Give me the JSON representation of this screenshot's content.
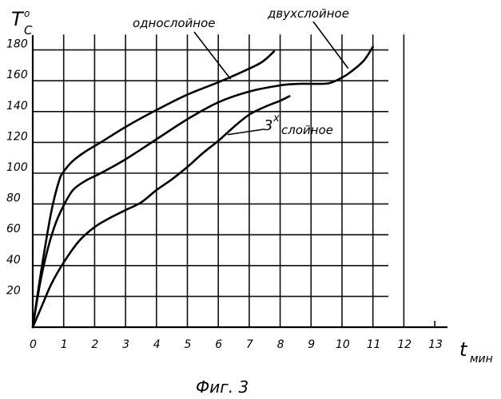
{
  "chart_data": {
    "type": "line",
    "title": "",
    "caption": "Фиг. 3",
    "xlabel": "t мин",
    "xlabel_main": "t",
    "xlabel_unit": "мин",
    "ylabel": "T°C",
    "ylabel_main": "T",
    "ylabel_sup": "o",
    "ylabel_sub": "C",
    "xlim": [
      0,
      13
    ],
    "ylim": [
      0,
      180
    ],
    "xticks": [
      0,
      1,
      2,
      3,
      4,
      5,
      6,
      7,
      8,
      9,
      10,
      11,
      12,
      13
    ],
    "yticks": [
      20,
      40,
      60,
      80,
      100,
      120,
      140,
      160,
      180
    ],
    "grid": true,
    "series": [
      {
        "name": "однослойное",
        "x": [
          0,
          0.3,
          0.6,
          0.85,
          1.0,
          1.3,
          1.7,
          2.2,
          3,
          4,
          5,
          6,
          6.8,
          7.4,
          7.8
        ],
        "y": [
          0,
          40,
          75,
          95,
          101,
          108,
          114,
          120,
          130,
          141,
          151,
          159,
          166,
          172,
          179
        ]
      },
      {
        "name": "двухслойное",
        "x": [
          0,
          0.25,
          0.5,
          0.75,
          1.0,
          1.3,
          1.7,
          2.2,
          3,
          4,
          5,
          6,
          7,
          8,
          8.6,
          9.2,
          9.6,
          10,
          10.3,
          10.7,
          11.0
        ],
        "y": [
          0,
          30,
          52,
          68,
          79,
          89,
          95,
          100,
          109,
          122,
          135,
          146,
          153,
          157,
          158,
          158,
          158.5,
          162,
          166,
          173,
          182
        ]
      },
      {
        "name": "3ˣ слойное",
        "x": [
          0,
          0.3,
          0.6,
          1.0,
          1.5,
          2.0,
          2.5,
          3,
          3.5,
          4,
          4.5,
          5,
          5.5,
          6,
          6.5,
          7,
          7.5,
          8,
          8.3
        ],
        "y": [
          0,
          14,
          28,
          42,
          56,
          65,
          71,
          76,
          81,
          89,
          96,
          104,
          113,
          121,
          130,
          138,
          143,
          147,
          150
        ]
      }
    ],
    "annotations": {
      "one_layer": "однослойное",
      "two_layer": "двухслойное",
      "three_layer_num": "3",
      "three_layer_sup": "x",
      "three_layer_word": "слойное"
    }
  }
}
